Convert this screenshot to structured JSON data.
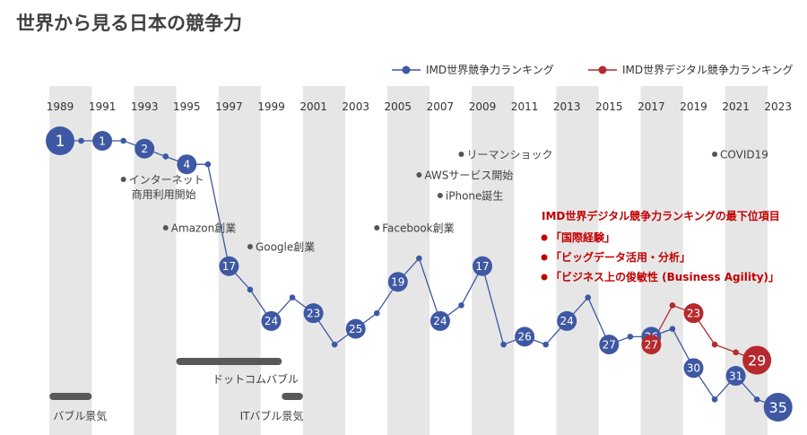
{
  "title": "世界から見る日本の競争力",
  "colors": {
    "wcr": "#3f58a3",
    "dcr": "#b52a2e",
    "band_gray": "#e6e6e6",
    "annotation_dot": "#555555",
    "annotation_text": "#404040",
    "bubble_bar": "#595959",
    "highlight_text": "#c00000"
  },
  "chart_data": {
    "type": "line",
    "x_ticks": [
      "1989",
      "1991",
      "1993",
      "1995",
      "1997",
      "1999",
      "2001",
      "2003",
      "2005",
      "2007",
      "2009",
      "2011",
      "2013",
      "2015",
      "2017",
      "2019",
      "2021",
      "2023"
    ],
    "y_axis": {
      "reversed": true,
      "range": [
        1,
        35
      ],
      "shown": false
    },
    "legend": {
      "placement": "top-right"
    },
    "series": [
      {
        "name": "IMD世界競争力ランキング",
        "color": "#3f58a3",
        "points": [
          {
            "x": 1989,
            "y": 1,
            "label": "1"
          },
          {
            "x": 1990,
            "y": 1
          },
          {
            "x": 1991,
            "y": 1,
            "label": "1"
          },
          {
            "x": 1992,
            "y": 1
          },
          {
            "x": 1993,
            "y": 2,
            "label": "2"
          },
          {
            "x": 1994,
            "y": 3
          },
          {
            "x": 1995,
            "y": 4,
            "label": "4"
          },
          {
            "x": 1996,
            "y": 4
          },
          {
            "x": 1997,
            "y": 17,
            "label": "17"
          },
          {
            "x": 1998,
            "y": 20
          },
          {
            "x": 1999,
            "y": 24,
            "label": "24"
          },
          {
            "x": 2000,
            "y": 21
          },
          {
            "x": 2001,
            "y": 23,
            "label": "23"
          },
          {
            "x": 2002,
            "y": 27
          },
          {
            "x": 2003,
            "y": 25,
            "label": "25"
          },
          {
            "x": 2004,
            "y": 23
          },
          {
            "x": 2005,
            "y": 19,
            "label": "19"
          },
          {
            "x": 2006,
            "y": 16
          },
          {
            "x": 2007,
            "y": 24,
            "label": "24"
          },
          {
            "x": 2008,
            "y": 22
          },
          {
            "x": 2009,
            "y": 17,
            "label": "17"
          },
          {
            "x": 2010,
            "y": 27
          },
          {
            "x": 2011,
            "y": 26,
            "label": "26"
          },
          {
            "x": 2012,
            "y": 27
          },
          {
            "x": 2013,
            "y": 24,
            "label": "24"
          },
          {
            "x": 2014,
            "y": 21
          },
          {
            "x": 2015,
            "y": 27,
            "label": "27"
          },
          {
            "x": 2016,
            "y": 26
          },
          {
            "x": 2017,
            "y": 26,
            "label": "26"
          },
          {
            "x": 2018,
            "y": 25
          },
          {
            "x": 2019,
            "y": 30,
            "label": "30"
          },
          {
            "x": 2020,
            "y": 34
          },
          {
            "x": 2021,
            "y": 31,
            "label": "31"
          },
          {
            "x": 2022,
            "y": 34
          },
          {
            "x": 2023,
            "y": 35,
            "label": "35"
          }
        ]
      },
      {
        "name": "IMD世界デジタル競争力ランキング",
        "color": "#b52a2e",
        "points": [
          {
            "x": 2017,
            "y": 27,
            "label": "27"
          },
          {
            "x": 2018,
            "y": 22
          },
          {
            "x": 2019,
            "y": 23,
            "label": "23"
          },
          {
            "x": 2020,
            "y": 27
          },
          {
            "x": 2021,
            "y": 28
          },
          {
            "x": 2022,
            "y": 29,
            "label": "29"
          }
        ]
      }
    ],
    "events": [
      {
        "id": "internet",
        "x": 1992,
        "text": "インターネット",
        "text2": "商用利用開始"
      },
      {
        "id": "amazon",
        "x": 1994,
        "text": "Amazon創業"
      },
      {
        "id": "google",
        "x": 1998,
        "text": "Google創業"
      },
      {
        "id": "facebook",
        "x": 2004,
        "text": "Facebook創業"
      },
      {
        "id": "aws",
        "x": 2006,
        "text": "AWSサービス開始"
      },
      {
        "id": "iphone",
        "x": 2007,
        "text": "iPhone誕生"
      },
      {
        "id": "lehman",
        "x": 2008,
        "text": "リーマンショック"
      },
      {
        "id": "covid",
        "x": 2020,
        "text": "COVID19"
      }
    ],
    "periods": [
      {
        "id": "bubble",
        "text": "バブル景気",
        "from": 1988.5,
        "to": 1990.5
      },
      {
        "id": "dotcom",
        "text": "ドットコムバブル",
        "from": 1994.5,
        "to": 1999.5
      },
      {
        "id": "it",
        "text": "ITバブル景気",
        "from": 1999.5,
        "to": 2000.5
      }
    ],
    "highlight": {
      "title": "IMD世界デジタル競争力ランキングの最下位項目",
      "items": [
        "「国際経験」",
        "「ビッグデータ活用・分析」",
        "「ビジネス上の俊敏性 (Business Agility)」"
      ]
    }
  }
}
